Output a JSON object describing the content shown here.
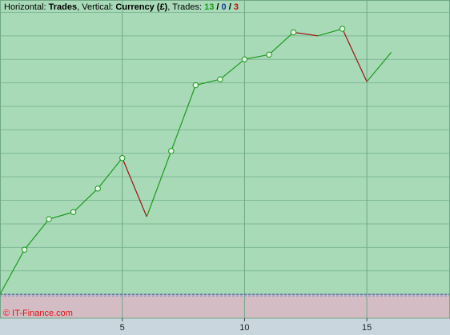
{
  "chart_data": {
    "type": "line",
    "header": {
      "horizontal_label": "Horizontal:",
      "horizontal": "Trades",
      "vertical_label": ", Vertical:",
      "vertical": "Currency (£)",
      "trades_label": ", Trades:",
      "wins": 13,
      "sep1": "/",
      "even": 0,
      "sep2": "/",
      "losses": 3
    },
    "watermark": "© IT-Finance.com",
    "x": [
      0,
      1,
      2,
      3,
      4,
      5,
      6,
      7,
      8,
      9,
      10,
      11,
      12,
      13,
      14,
      15,
      16
    ],
    "values": [
      0,
      1.9,
      3.2,
      3.5,
      4.5,
      5.8,
      3.3,
      6.1,
      8.9,
      9.15,
      10.0,
      10.2,
      11.15,
      11.0,
      11.3,
      9.05,
      10.3
    ],
    "up_color": "#1a9a1a",
    "down_color": "#a01010",
    "profit_fill": "#a8dab8",
    "loss_fill": "#d4bcc4",
    "xlim": [
      0,
      18.4
    ],
    "xticks": [
      5,
      10,
      15
    ],
    "ylim": [
      -1,
      12.5
    ],
    "yticks": [
      0,
      1,
      2,
      3,
      4,
      5,
      6,
      7,
      8,
      9,
      10,
      11,
      12
    ],
    "grid": true
  }
}
